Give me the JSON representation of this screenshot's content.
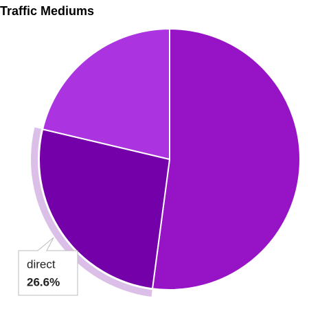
{
  "chart_data": {
    "type": "pie",
    "title": "Traffic Mediums",
    "categories": [
      null,
      "direct",
      null
    ],
    "values": [
      52.1,
      26.6,
      21.3
    ],
    "value_labels": [
      null,
      "26.6%",
      null
    ],
    "colors": [
      "#9714c6",
      "#7300a8",
      "#ac33e0"
    ]
  }
}
